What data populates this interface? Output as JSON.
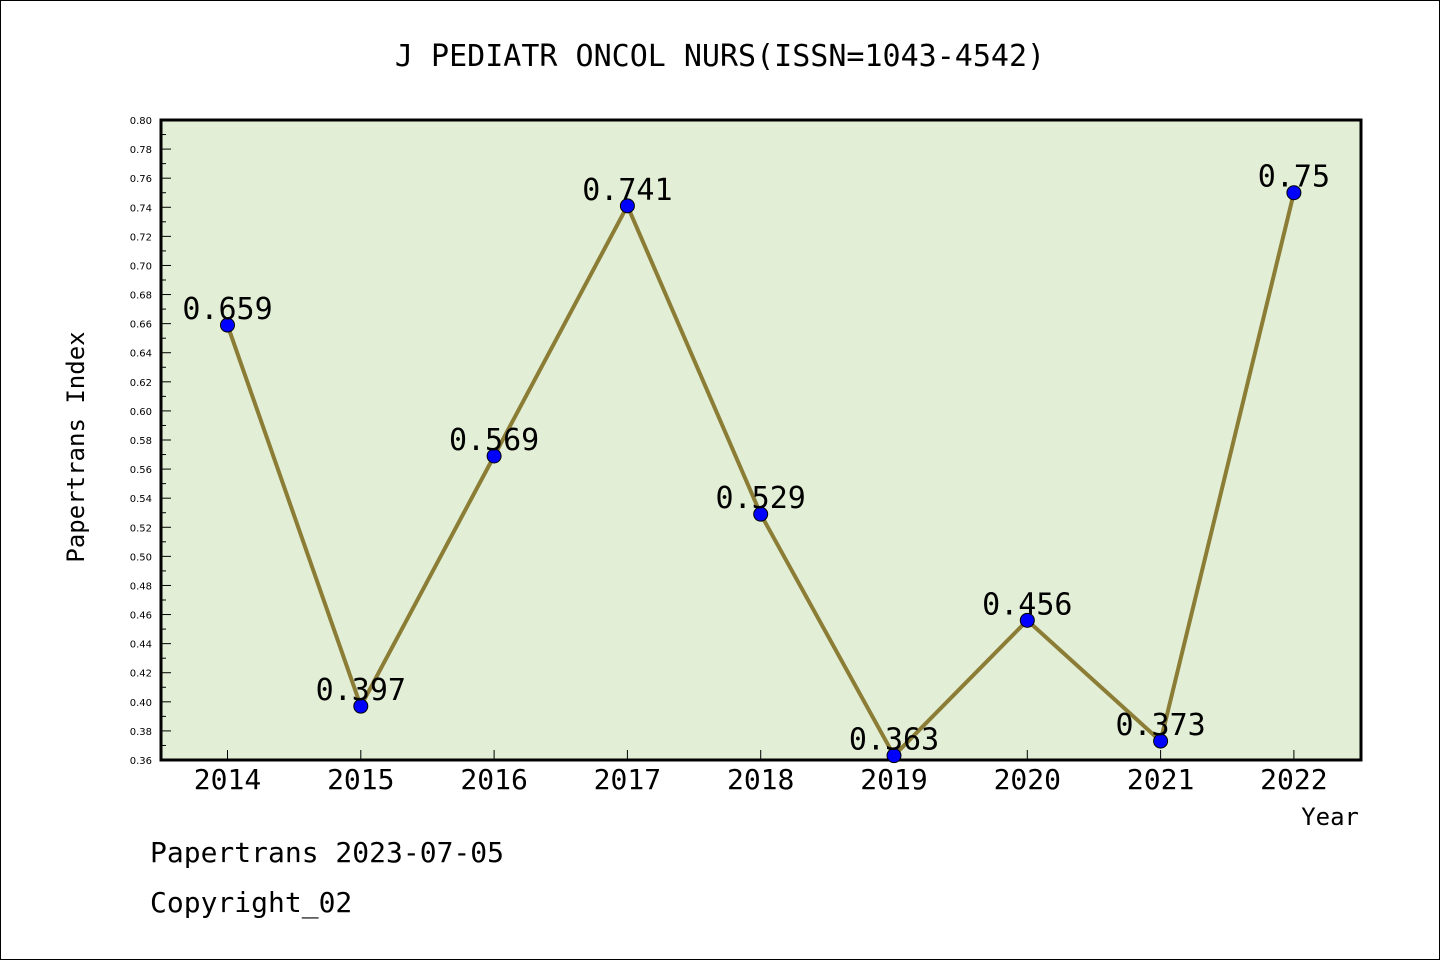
{
  "chart_data": {
    "type": "line",
    "title": "J PEDIATR ONCOL NURS(ISSN=1043-4542)",
    "xlabel": "Year",
    "ylabel": "Papertrans Index",
    "categories": [
      "2014",
      "2015",
      "2016",
      "2017",
      "2018",
      "2019",
      "2020",
      "2021",
      "2022"
    ],
    "series": [
      {
        "values": [
          0.659,
          0.397,
          0.569,
          0.741,
          0.529,
          0.363,
          0.456,
          0.373,
          0.75
        ],
        "labels": [
          "0.659",
          "0.397",
          "0.569",
          "0.741",
          "0.529",
          "0.363",
          "0.456",
          "0.373",
          "0.75"
        ]
      }
    ],
    "ylim": [
      0.36,
      0.8
    ],
    "yticks": [
      "0.36",
      "0.38",
      "0.40",
      "0.42",
      "0.44",
      "0.46",
      "0.48",
      "0.50",
      "0.52",
      "0.54",
      "0.56",
      "0.58",
      "0.60",
      "0.62",
      "0.64",
      "0.66",
      "0.68",
      "0.70",
      "0.72",
      "0.74",
      "0.76",
      "0.78",
      "0.80"
    ],
    "grid": false,
    "colors": {
      "plot_background": "#e2efd6",
      "line": "#8b7d35",
      "marker": "#0000ff"
    }
  },
  "footer": {
    "date_line": "Papertrans 2023-07-05",
    "copyright_line": "Copyright_02"
  }
}
